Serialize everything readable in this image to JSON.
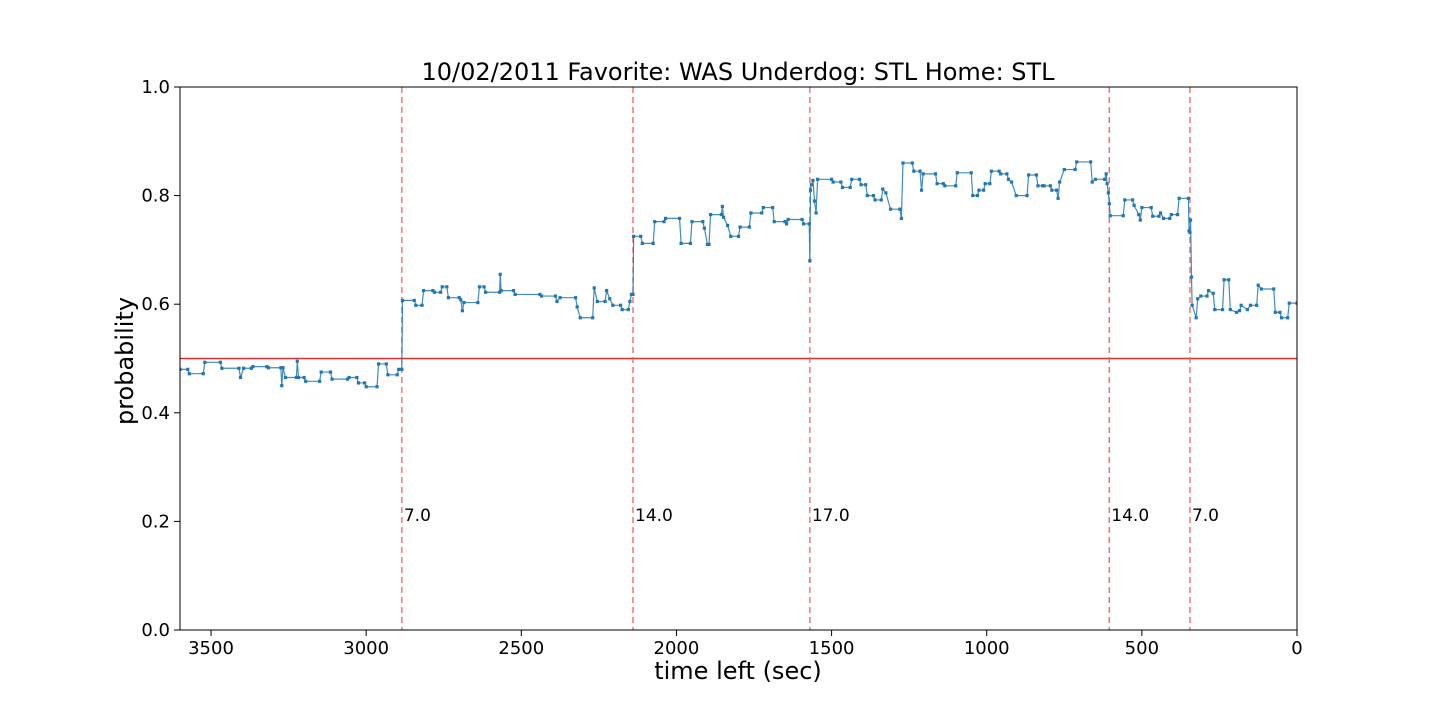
{
  "chart_data": {
    "type": "line",
    "title": "10/02/2011 Favorite: WAS Underdog: STL Home: STL",
    "xlabel": "time left (sec)",
    "ylabel": "probability",
    "xlim": [
      3600,
      0
    ],
    "ylim": [
      0.0,
      1.0
    ],
    "x_ticks": [
      3500,
      3000,
      2500,
      2000,
      1500,
      1000,
      500,
      0
    ],
    "y_ticks": [
      0.0,
      0.2,
      0.4,
      0.6,
      0.8,
      1.0
    ],
    "x_tick_labels": [
      "3500",
      "3000",
      "2500",
      "2000",
      "1500",
      "1000",
      "500",
      "0"
    ],
    "y_tick_labels": [
      "0.0",
      "0.2",
      "0.4",
      "0.6",
      "0.8",
      "1.0"
    ],
    "grid": false,
    "reference_line": {
      "y": 0.5,
      "color": "#e03030"
    },
    "vertical_markers": [
      {
        "x": 2885,
        "label": "7.0"
      },
      {
        "x": 2140,
        "label": "14.0"
      },
      {
        "x": 1570,
        "label": "17.0"
      },
      {
        "x": 605,
        "label": "14.0"
      },
      {
        "x": 345,
        "label": "7.0"
      }
    ],
    "series": [
      {
        "color": "#1f77b4",
        "points": [
          [
            3600,
            0.48
          ],
          [
            3575,
            0.48
          ],
          [
            3570,
            0.472
          ],
          [
            3525,
            0.472
          ],
          [
            3520,
            0.493
          ],
          [
            3470,
            0.493
          ],
          [
            3465,
            0.482
          ],
          [
            3410,
            0.482
          ],
          [
            3405,
            0.465
          ],
          [
            3395,
            0.482
          ],
          [
            3370,
            0.482
          ],
          [
            3365,
            0.485
          ],
          [
            3320,
            0.485
          ],
          [
            3315,
            0.483
          ],
          [
            3275,
            0.483
          ],
          [
            3272,
            0.45
          ],
          [
            3268,
            0.483
          ],
          [
            3260,
            0.465
          ],
          [
            3225,
            0.465
          ],
          [
            3222,
            0.495
          ],
          [
            3218,
            0.465
          ],
          [
            3200,
            0.465
          ],
          [
            3195,
            0.458
          ],
          [
            3150,
            0.458
          ],
          [
            3145,
            0.475
          ],
          [
            3115,
            0.475
          ],
          [
            3110,
            0.462
          ],
          [
            3060,
            0.462
          ],
          [
            3055,
            0.465
          ],
          [
            3030,
            0.465
          ],
          [
            3025,
            0.455
          ],
          [
            3005,
            0.455
          ],
          [
            3000,
            0.448
          ],
          [
            2965,
            0.448
          ],
          [
            2960,
            0.49
          ],
          [
            2935,
            0.49
          ],
          [
            2930,
            0.47
          ],
          [
            2900,
            0.47
          ],
          [
            2895,
            0.48
          ],
          [
            2885,
            0.48
          ],
          [
            2883,
            0.607
          ],
          [
            2845,
            0.607
          ],
          [
            2840,
            0.598
          ],
          [
            2820,
            0.598
          ],
          [
            2815,
            0.625
          ],
          [
            2785,
            0.625
          ],
          [
            2780,
            0.622
          ],
          [
            2760,
            0.622
          ],
          [
            2755,
            0.632
          ],
          [
            2740,
            0.632
          ],
          [
            2735,
            0.612
          ],
          [
            2700,
            0.612
          ],
          [
            2695,
            0.608
          ],
          [
            2690,
            0.588
          ],
          [
            2685,
            0.603
          ],
          [
            2640,
            0.603
          ],
          [
            2635,
            0.632
          ],
          [
            2620,
            0.632
          ],
          [
            2615,
            0.622
          ],
          [
            2570,
            0.622
          ],
          [
            2568,
            0.655
          ],
          [
            2565,
            0.625
          ],
          [
            2525,
            0.625
          ],
          [
            2520,
            0.618
          ],
          [
            2440,
            0.618
          ],
          [
            2435,
            0.615
          ],
          [
            2390,
            0.615
          ],
          [
            2385,
            0.605
          ],
          [
            2375,
            0.612
          ],
          [
            2325,
            0.612
          ],
          [
            2320,
            0.595
          ],
          [
            2310,
            0.575
          ],
          [
            2270,
            0.575
          ],
          [
            2265,
            0.63
          ],
          [
            2255,
            0.605
          ],
          [
            2230,
            0.605
          ],
          [
            2225,
            0.625
          ],
          [
            2215,
            0.61
          ],
          [
            2205,
            0.598
          ],
          [
            2180,
            0.598
          ],
          [
            2175,
            0.59
          ],
          [
            2155,
            0.59
          ],
          [
            2150,
            0.605
          ],
          [
            2145,
            0.618
          ],
          [
            2140,
            0.618
          ],
          [
            2138,
            0.725
          ],
          [
            2115,
            0.725
          ],
          [
            2110,
            0.712
          ],
          [
            2075,
            0.712
          ],
          [
            2070,
            0.752
          ],
          [
            2040,
            0.752
          ],
          [
            2035,
            0.758
          ],
          [
            1990,
            0.758
          ],
          [
            1985,
            0.712
          ],
          [
            1955,
            0.712
          ],
          [
            1950,
            0.752
          ],
          [
            1915,
            0.752
          ],
          [
            1910,
            0.74
          ],
          [
            1900,
            0.71
          ],
          [
            1895,
            0.71
          ],
          [
            1890,
            0.765
          ],
          [
            1855,
            0.765
          ],
          [
            1852,
            0.78
          ],
          [
            1848,
            0.76
          ],
          [
            1835,
            0.745
          ],
          [
            1825,
            0.725
          ],
          [
            1800,
            0.725
          ],
          [
            1795,
            0.742
          ],
          [
            1765,
            0.742
          ],
          [
            1760,
            0.768
          ],
          [
            1725,
            0.768
          ],
          [
            1720,
            0.778
          ],
          [
            1690,
            0.778
          ],
          [
            1685,
            0.752
          ],
          [
            1650,
            0.752
          ],
          [
            1645,
            0.748
          ],
          [
            1640,
            0.756
          ],
          [
            1595,
            0.756
          ],
          [
            1590,
            0.748
          ],
          [
            1572,
            0.748
          ],
          [
            1570,
            0.68
          ],
          [
            1568,
            0.81
          ],
          [
            1565,
            0.82
          ],
          [
            1560,
            0.828
          ],
          [
            1555,
            0.79
          ],
          [
            1550,
            0.768
          ],
          [
            1545,
            0.83
          ],
          [
            1500,
            0.83
          ],
          [
            1495,
            0.825
          ],
          [
            1470,
            0.825
          ],
          [
            1465,
            0.815
          ],
          [
            1440,
            0.815
          ],
          [
            1435,
            0.83
          ],
          [
            1410,
            0.83
          ],
          [
            1405,
            0.82
          ],
          [
            1390,
            0.82
          ],
          [
            1385,
            0.8
          ],
          [
            1365,
            0.8
          ],
          [
            1360,
            0.792
          ],
          [
            1340,
            0.792
          ],
          [
            1335,
            0.812
          ],
          [
            1325,
            0.805
          ],
          [
            1310,
            0.775
          ],
          [
            1280,
            0.775
          ],
          [
            1275,
            0.758
          ],
          [
            1270,
            0.86
          ],
          [
            1240,
            0.86
          ],
          [
            1235,
            0.845
          ],
          [
            1215,
            0.845
          ],
          [
            1210,
            0.81
          ],
          [
            1205,
            0.84
          ],
          [
            1165,
            0.84
          ],
          [
            1160,
            0.822
          ],
          [
            1140,
            0.822
          ],
          [
            1135,
            0.818
          ],
          [
            1100,
            0.818
          ],
          [
            1095,
            0.842
          ],
          [
            1050,
            0.842
          ],
          [
            1045,
            0.8
          ],
          [
            1030,
            0.8
          ],
          [
            1025,
            0.81
          ],
          [
            1010,
            0.81
          ],
          [
            1005,
            0.822
          ],
          [
            990,
            0.822
          ],
          [
            985,
            0.845
          ],
          [
            960,
            0.845
          ],
          [
            955,
            0.84
          ],
          [
            935,
            0.84
          ],
          [
            930,
            0.83
          ],
          [
            920,
            0.825
          ],
          [
            905,
            0.8
          ],
          [
            870,
            0.8
          ],
          [
            865,
            0.838
          ],
          [
            840,
            0.838
          ],
          [
            835,
            0.818
          ],
          [
            820,
            0.818
          ],
          [
            815,
            0.818
          ],
          [
            795,
            0.818
          ],
          [
            790,
            0.81
          ],
          [
            775,
            0.81
          ],
          [
            770,
            0.795
          ],
          [
            765,
            0.825
          ],
          [
            750,
            0.848
          ],
          [
            715,
            0.848
          ],
          [
            710,
            0.862
          ],
          [
            665,
            0.862
          ],
          [
            660,
            0.825
          ],
          [
            650,
            0.83
          ],
          [
            620,
            0.83
          ],
          [
            615,
            0.84
          ],
          [
            612,
            0.822
          ],
          [
            608,
            0.805
          ],
          [
            605,
            0.785
          ],
          [
            602,
            0.763
          ],
          [
            560,
            0.763
          ],
          [
            555,
            0.792
          ],
          [
            530,
            0.792
          ],
          [
            525,
            0.782
          ],
          [
            510,
            0.765
          ],
          [
            505,
            0.755
          ],
          [
            500,
            0.778
          ],
          [
            470,
            0.778
          ],
          [
            465,
            0.762
          ],
          [
            445,
            0.762
          ],
          [
            440,
            0.768
          ],
          [
            430,
            0.758
          ],
          [
            410,
            0.758
          ],
          [
            405,
            0.765
          ],
          [
            385,
            0.765
          ],
          [
            380,
            0.795
          ],
          [
            350,
            0.795
          ],
          [
            348,
            0.735
          ],
          [
            345,
            0.732
          ],
          [
            343,
            0.755
          ],
          [
            340,
            0.65
          ],
          [
            338,
            0.598
          ],
          [
            325,
            0.575
          ],
          [
            320,
            0.61
          ],
          [
            310,
            0.615
          ],
          [
            290,
            0.615
          ],
          [
            285,
            0.625
          ],
          [
            270,
            0.62
          ],
          [
            265,
            0.59
          ],
          [
            240,
            0.59
          ],
          [
            235,
            0.645
          ],
          [
            220,
            0.645
          ],
          [
            215,
            0.59
          ],
          [
            195,
            0.585
          ],
          [
            185,
            0.588
          ],
          [
            180,
            0.598
          ],
          [
            160,
            0.59
          ],
          [
            150,
            0.598
          ],
          [
            130,
            0.598
          ],
          [
            125,
            0.635
          ],
          [
            115,
            0.628
          ],
          [
            75,
            0.628
          ],
          [
            70,
            0.585
          ],
          [
            55,
            0.585
          ],
          [
            50,
            0.575
          ],
          [
            30,
            0.575
          ],
          [
            25,
            0.602
          ],
          [
            0,
            0.602
          ]
        ]
      }
    ]
  }
}
